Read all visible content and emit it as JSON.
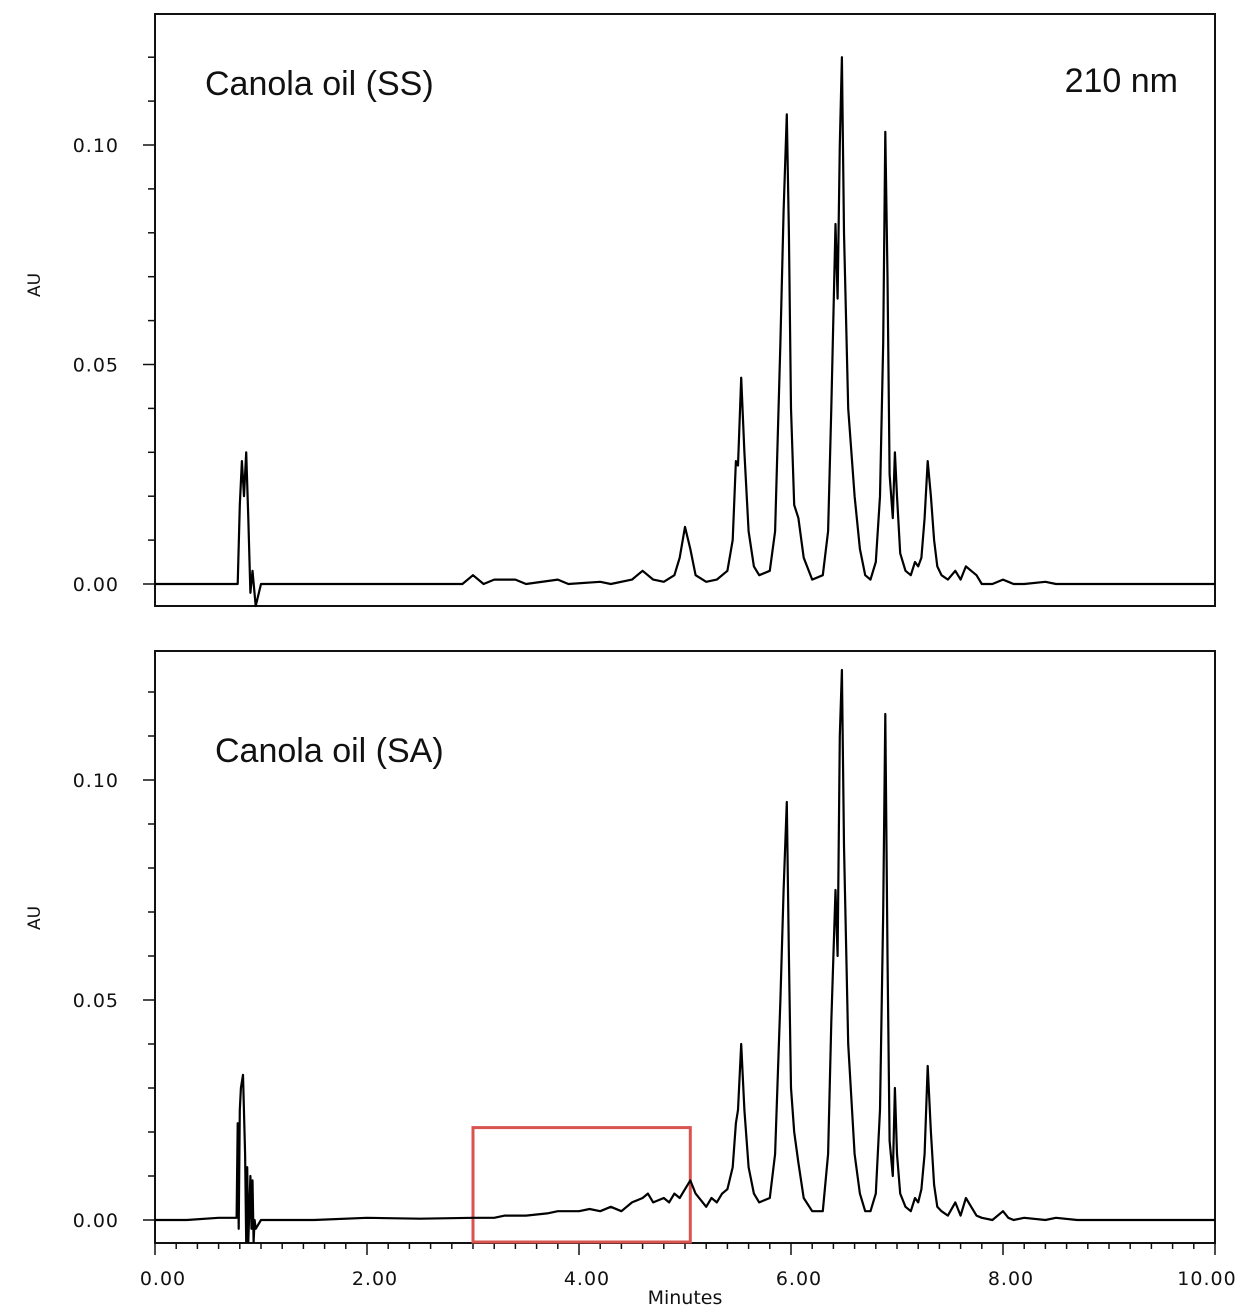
{
  "chart_data": [
    {
      "type": "line",
      "title": "Canola oil (SS)",
      "annotation": "210 nm",
      "ylabel": "AU",
      "xlabel": "",
      "xlim": [
        0,
        10
      ],
      "ylim": [
        -0.005,
        0.13
      ],
      "yticks": [
        {
          "value": 0.0,
          "label": "0.00"
        },
        {
          "value": 0.05,
          "label": "0.05"
        },
        {
          "value": 0.1,
          "label": "0.10"
        }
      ],
      "xticks": [],
      "grid": false,
      "series": [
        {
          "color": "#000000",
          "x": [
            0.0,
            0.3,
            0.6,
            0.78,
            0.8,
            0.82,
            0.84,
            0.86,
            0.88,
            0.9,
            0.92,
            0.95,
            1.0,
            1.2,
            2.0,
            2.9,
            3.0,
            3.1,
            3.2,
            3.4,
            3.5,
            3.8,
            3.9,
            4.2,
            4.3,
            4.5,
            4.6,
            4.7,
            4.8,
            4.9,
            4.95,
            5.0,
            5.05,
            5.1,
            5.2,
            5.3,
            5.4,
            5.45,
            5.48,
            5.5,
            5.53,
            5.56,
            5.6,
            5.65,
            5.7,
            5.8,
            5.85,
            5.9,
            5.93,
            5.96,
            5.98,
            6.0,
            6.03,
            6.07,
            6.12,
            6.2,
            6.3,
            6.35,
            6.38,
            6.42,
            6.44,
            6.46,
            6.48,
            6.5,
            6.54,
            6.6,
            6.65,
            6.7,
            6.75,
            6.8,
            6.84,
            6.87,
            6.89,
            6.91,
            6.93,
            6.96,
            6.98,
            7.0,
            7.03,
            7.08,
            7.13,
            7.17,
            7.2,
            7.23,
            7.26,
            7.29,
            7.32,
            7.35,
            7.38,
            7.42,
            7.48,
            7.55,
            7.6,
            7.65,
            7.7,
            7.75,
            7.8,
            7.9,
            8.0,
            8.05,
            8.1,
            8.2,
            8.4,
            8.5,
            8.7,
            9.0,
            9.5,
            10.0
          ],
          "y": [
            0.0,
            0.0,
            0.0,
            0.0,
            0.018,
            0.028,
            0.02,
            0.03,
            0.015,
            -0.002,
            0.003,
            -0.005,
            0.0,
            0.0,
            0.0,
            0.0,
            0.002,
            0.0,
            0.001,
            0.001,
            0.0,
            0.001,
            0.0,
            0.0005,
            0.0,
            0.001,
            0.003,
            0.001,
            0.0005,
            0.002,
            0.006,
            0.013,
            0.008,
            0.002,
            0.0005,
            0.001,
            0.003,
            0.01,
            0.028,
            0.027,
            0.047,
            0.03,
            0.012,
            0.004,
            0.002,
            0.003,
            0.012,
            0.055,
            0.085,
            0.107,
            0.08,
            0.04,
            0.018,
            0.015,
            0.006,
            0.001,
            0.002,
            0.012,
            0.04,
            0.082,
            0.065,
            0.1,
            0.12,
            0.08,
            0.04,
            0.02,
            0.008,
            0.002,
            0.001,
            0.005,
            0.02,
            0.055,
            0.103,
            0.07,
            0.025,
            0.015,
            0.03,
            0.02,
            0.007,
            0.003,
            0.002,
            0.005,
            0.004,
            0.006,
            0.015,
            0.028,
            0.02,
            0.01,
            0.004,
            0.002,
            0.001,
            0.003,
            0.001,
            0.004,
            0.003,
            0.002,
            0.0,
            0.0,
            0.001,
            0.0005,
            0.0,
            0.0,
            0.0005,
            0.0,
            0.0,
            0.0,
            0.0,
            0.0
          ]
        }
      ]
    },
    {
      "type": "line",
      "title": "Canola oil (SA)",
      "ylabel": "AU",
      "xlabel": "Minutes",
      "xlim": [
        0,
        10
      ],
      "ylim": [
        -0.005,
        0.13
      ],
      "yticks": [
        {
          "value": 0.0,
          "label": "0.00"
        },
        {
          "value": 0.05,
          "label": "0.05"
        },
        {
          "value": 0.1,
          "label": "0.10"
        }
      ],
      "xticks": [
        {
          "value": 0,
          "label": "0.00"
        },
        {
          "value": 2,
          "label": "2.00"
        },
        {
          "value": 4,
          "label": "4.00"
        },
        {
          "value": 6,
          "label": "6.00"
        },
        {
          "value": 8,
          "label": "8.00"
        },
        {
          "value": 10,
          "label": "10.00"
        }
      ],
      "grid": false,
      "highlight_box": {
        "x": [
          3.0,
          5.05
        ],
        "y": [
          -0.005,
          0.021
        ],
        "color": "#d9534f"
      },
      "series": [
        {
          "color": "#000000",
          "x": [
            0.0,
            0.3,
            0.6,
            0.77,
            0.78,
            0.79,
            0.8,
            0.81,
            0.83,
            0.85,
            0.86,
            0.87,
            0.88,
            0.9,
            0.91,
            0.92,
            0.93,
            0.94,
            0.95,
            1.0,
            1.5,
            2.0,
            2.5,
            3.0,
            3.2,
            3.3,
            3.5,
            3.7,
            3.8,
            3.9,
            4.0,
            4.1,
            4.2,
            4.3,
            4.4,
            4.5,
            4.6,
            4.65,
            4.7,
            4.8,
            4.85,
            4.9,
            4.95,
            5.0,
            5.05,
            5.1,
            5.2,
            5.25,
            5.3,
            5.35,
            5.4,
            5.45,
            5.48,
            5.5,
            5.53,
            5.56,
            5.6,
            5.65,
            5.7,
            5.8,
            5.85,
            5.9,
            5.93,
            5.96,
            5.98,
            6.0,
            6.03,
            6.07,
            6.12,
            6.2,
            6.3,
            6.35,
            6.38,
            6.42,
            6.44,
            6.46,
            6.48,
            6.5,
            6.54,
            6.6,
            6.65,
            6.7,
            6.75,
            6.8,
            6.84,
            6.87,
            6.89,
            6.91,
            6.93,
            6.96,
            6.98,
            7.0,
            7.03,
            7.08,
            7.13,
            7.17,
            7.2,
            7.23,
            7.26,
            7.29,
            7.32,
            7.35,
            7.38,
            7.42,
            7.48,
            7.55,
            7.6,
            7.65,
            7.7,
            7.75,
            7.8,
            7.9,
            8.0,
            8.05,
            8.1,
            8.2,
            8.4,
            8.5,
            8.7,
            9.0,
            9.5,
            10.0
          ],
          "y": [
            0.0,
            0.0,
            0.0005,
            0.0005,
            0.022,
            -0.002,
            0.025,
            0.03,
            0.033,
            0.015,
            -0.005,
            0.012,
            -0.005,
            0.01,
            -0.002,
            0.009,
            -0.005,
            0.0,
            -0.002,
            0.0,
            0.0,
            0.0005,
            0.0003,
            0.0005,
            0.0005,
            0.001,
            0.001,
            0.0015,
            0.002,
            0.002,
            0.002,
            0.0025,
            0.002,
            0.003,
            0.002,
            0.004,
            0.005,
            0.006,
            0.004,
            0.005,
            0.004,
            0.006,
            0.005,
            0.007,
            0.009,
            0.006,
            0.003,
            0.005,
            0.004,
            0.006,
            0.007,
            0.012,
            0.022,
            0.025,
            0.04,
            0.025,
            0.012,
            0.006,
            0.004,
            0.005,
            0.015,
            0.05,
            0.075,
            0.095,
            0.06,
            0.03,
            0.02,
            0.013,
            0.005,
            0.002,
            0.002,
            0.015,
            0.045,
            0.075,
            0.06,
            0.11,
            0.125,
            0.085,
            0.04,
            0.015,
            0.006,
            0.002,
            0.002,
            0.006,
            0.025,
            0.07,
            0.115,
            0.06,
            0.018,
            0.01,
            0.03,
            0.015,
            0.006,
            0.003,
            0.002,
            0.005,
            0.004,
            0.007,
            0.015,
            0.035,
            0.02,
            0.008,
            0.003,
            0.002,
            0.001,
            0.004,
            0.001,
            0.005,
            0.003,
            0.001,
            0.0005,
            0.0,
            0.002,
            0.0005,
            0.0,
            0.0005,
            0.0,
            0.0005,
            0.0,
            0.0,
            0.0,
            0.0
          ]
        }
      ]
    }
  ]
}
